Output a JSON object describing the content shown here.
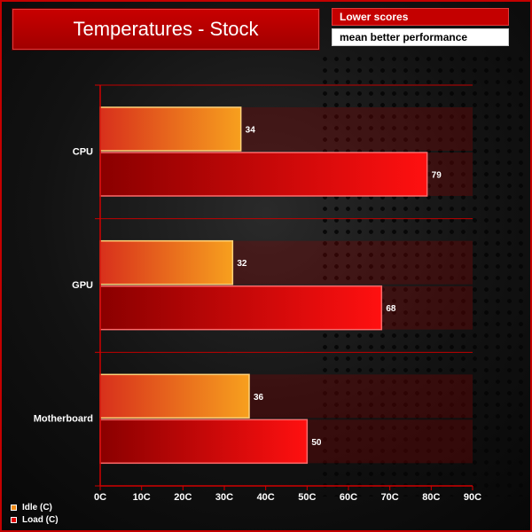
{
  "header": {
    "title": "Temperatures - Stock",
    "note_line1": "Lower scores",
    "note_line2": "mean better performance"
  },
  "colors": {
    "idle": "#f08a18",
    "load": "#e00000",
    "accent": "#c40000"
  },
  "chart_data": {
    "type": "bar",
    "orientation": "horizontal",
    "title": "Temperatures - Stock",
    "categories": [
      "CPU",
      "GPU",
      "Motherboard"
    ],
    "series": [
      {
        "name": "Idle (C)",
        "values": [
          34,
          32,
          36
        ]
      },
      {
        "name": "Load (C)",
        "values": [
          79,
          68,
          50
        ]
      }
    ],
    "xlim": [
      0,
      90
    ],
    "xticks": [
      "0C",
      "10C",
      "20C",
      "30C",
      "40C",
      "50C",
      "60C",
      "70C",
      "80C",
      "90C"
    ],
    "legend_position": "bottom-left",
    "grid": true
  }
}
